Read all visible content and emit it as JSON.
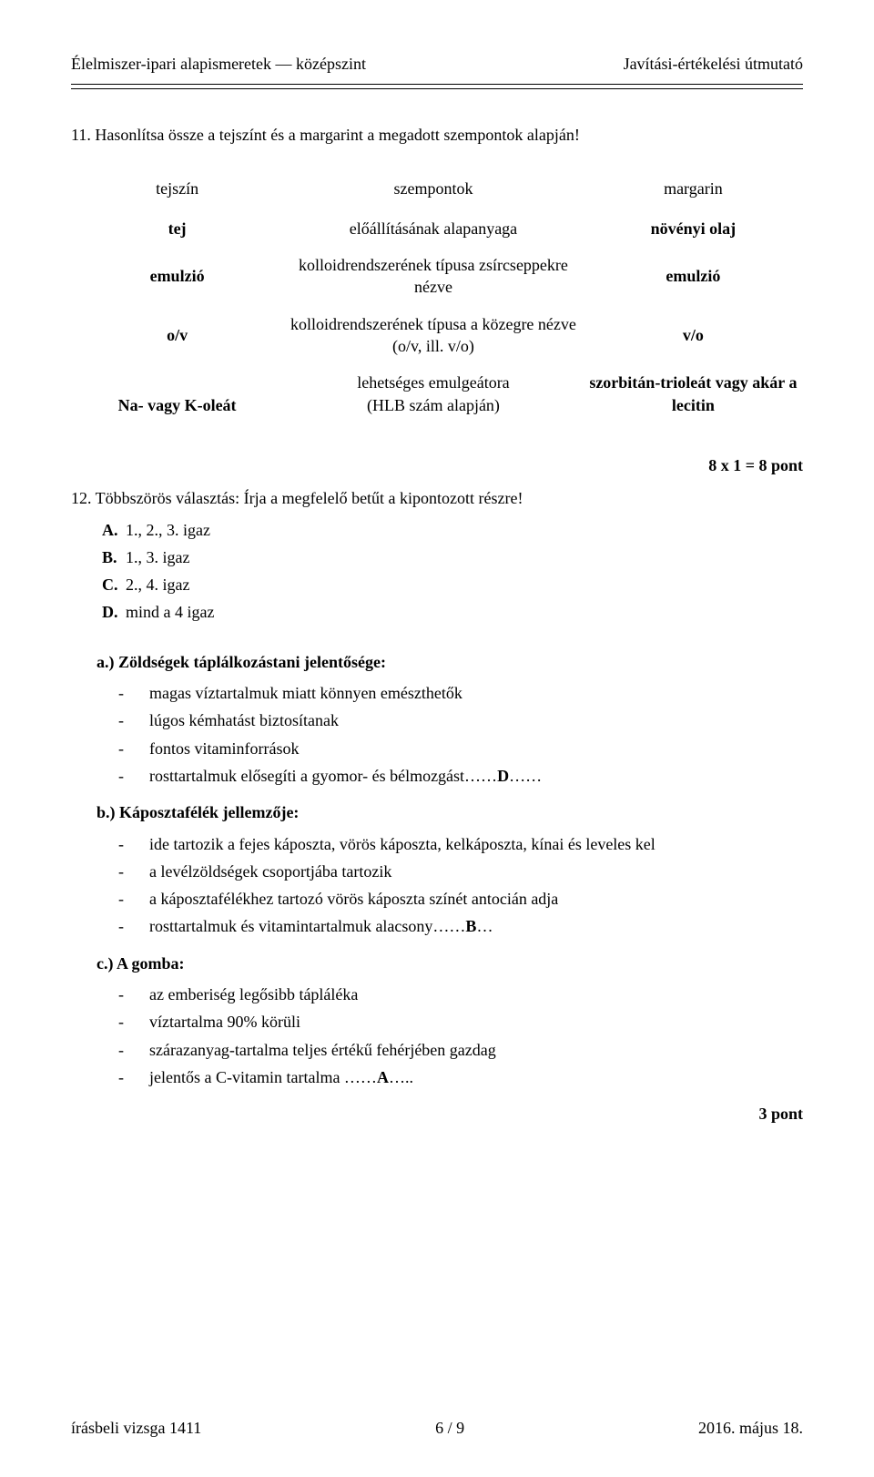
{
  "header": {
    "left": "Élelmiszer-ipari alapismeretek — középszint",
    "right": "Javítási-értékelési útmutató"
  },
  "q11": {
    "intro": "11. Hasonlítsa össze a tejszínt és a margarint a megadott szempontok alapján!",
    "table": {
      "head": {
        "c1": "tejszín",
        "c2": "szempontok",
        "c3": "margarin"
      },
      "rows": [
        {
          "c1": "tej",
          "c2": "előállításának alapanyaga",
          "c3": "növényi olaj",
          "c1_bold": true,
          "c3_bold": true
        },
        {
          "c1": "emulzió",
          "c2": "kolloidrendszerének típusa zsírcseppekre nézve",
          "c3": "emulzió",
          "c1_bold": true,
          "c3_bold": true
        },
        {
          "c1": "o/v",
          "c2": "kolloidrendszerének típusa a közegre nézve (o/v, ill. v/o)",
          "c3": "v/o",
          "c1_bold": true,
          "c3_bold": true
        },
        {
          "c1": "Na- vagy K-oleát",
          "c2_a": "lehetséges emulgeátora",
          "c2_b": "(HLB szám alapján)",
          "c3": "szorbitán-trioleát vagy akár a lecitin",
          "c1_bold": true,
          "c3_bold": true
        }
      ]
    },
    "points": "8 x 1 = 8 pont"
  },
  "q12": {
    "intro": "12. Többszörös választás: Írja a megfelelő betűt a kipontozott részre!",
    "options": [
      {
        "lbl": "A.",
        "txt": "1., 2., 3. igaz"
      },
      {
        "lbl": "B.",
        "txt": "1., 3. igaz"
      },
      {
        "lbl": "C.",
        "txt": "2., 4. igaz"
      },
      {
        "lbl": "D.",
        "txt": "mind a 4 igaz"
      }
    ],
    "sections": [
      {
        "heading": "a.) Zöldségek táplálkozástani jelentősége:",
        "bullets": [
          {
            "t": "magas víztartalmuk miatt könnyen emészthetők"
          },
          {
            "t": "lúgos kémhatást biztosítanak"
          },
          {
            "t": "fontos vitaminforrások"
          },
          {
            "t": "rosttartalmuk elősegíti a gyomor- és bélmozgást……",
            "ans": "D",
            "tail": "……"
          }
        ]
      },
      {
        "heading": "b.) Káposztafélék jellemzője:",
        "bullets": [
          {
            "t": "ide tartozik a fejes káposzta, vörös káposzta, kelkáposzta, kínai és leveles kel"
          },
          {
            "t": "a levélzöldségek csoportjába tartozik"
          },
          {
            "t": "a káposztafélékhez tartozó vörös káposzta színét antocián adja"
          },
          {
            "t": "rosttartalmuk és vitamintartalmuk alacsony……",
            "ans": "B",
            "tail": "…"
          }
        ]
      },
      {
        "heading": "c.) A gomba:",
        "bullets": [
          {
            "t": "az emberiség legősibb tápláléka"
          },
          {
            "t": "víztartalma 90% körüli"
          },
          {
            "t": "szárazanyag-tartalma teljes értékű fehérjében gazdag"
          },
          {
            "t": "jelentős a C-vitamin tartalma   ……",
            "ans": "A",
            "tail": "….."
          }
        ]
      }
    ],
    "points": "3 pont"
  },
  "footer": {
    "left": "írásbeli vizsga 1411",
    "center": "6 / 9",
    "right": "2016. május 18."
  }
}
